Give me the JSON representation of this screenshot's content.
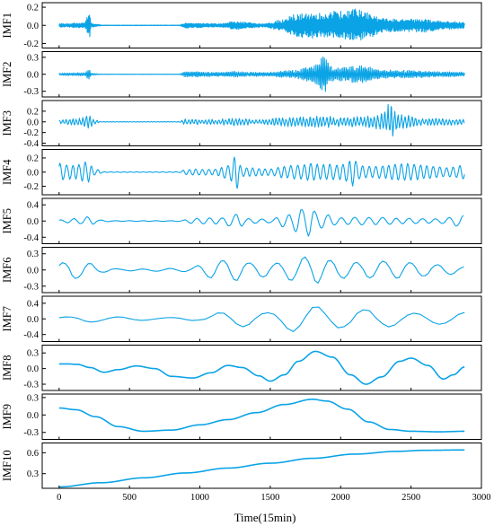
{
  "chart_data": {
    "type": "line",
    "xlabel": "Time(15min)",
    "xlim": [
      -120,
      3000
    ],
    "x_ticks": [
      "0",
      "500",
      "1000",
      "1500",
      "2000",
      "2500",
      "3000"
    ],
    "x_tick_values": [
      0,
      500,
      1000,
      1500,
      2000,
      2500,
      3000
    ],
    "n_points": 2880,
    "line_color": "#0aa3e6",
    "panels": [
      {
        "ylabel": "IMF1",
        "ylim": [
          -0.25,
          0.25
        ],
        "y_ticks": [
          "-0.2",
          "0.0",
          "0.2"
        ],
        "y_tick_values": [
          -0.2,
          0.0,
          0.2
        ],
        "description_points": [
          [
            0,
            0
          ],
          [
            200,
            0.02
          ],
          [
            220,
            0.15
          ],
          [
            225,
            -0.13
          ],
          [
            240,
            0.01
          ],
          [
            900,
            0.03
          ],
          [
            1600,
            0.12
          ],
          [
            1800,
            -0.15
          ],
          [
            2100,
            0.18
          ],
          [
            2200,
            0.12
          ],
          [
            2880,
            0.02
          ]
        ],
        "envelope": [
          [
            0,
            0.02
          ],
          [
            180,
            0.03
          ],
          [
            215,
            0.16
          ],
          [
            230,
            0.02
          ],
          [
            290,
            0.01
          ],
          [
            300,
            0.003
          ],
          [
            850,
            0.003
          ],
          [
            900,
            0.03
          ],
          [
            1150,
            0.02
          ],
          [
            1260,
            0.05
          ],
          [
            1350,
            0.03
          ],
          [
            1450,
            0.02
          ],
          [
            1580,
            0.06
          ],
          [
            1650,
            0.12
          ],
          [
            1750,
            0.14
          ],
          [
            1850,
            0.15
          ],
          [
            1950,
            0.16
          ],
          [
            2050,
            0.17
          ],
          [
            2100,
            0.19
          ],
          [
            2200,
            0.15
          ],
          [
            2300,
            0.08
          ],
          [
            2450,
            0.07
          ],
          [
            2600,
            0.08
          ],
          [
            2700,
            0.05
          ],
          [
            2880,
            0.04
          ]
        ],
        "oscillation_period": 6
      },
      {
        "ylabel": "IMF2",
        "ylim": [
          -0.4,
          0.4
        ],
        "y_ticks": [
          "0.3",
          "0.0",
          "-0.3"
        ],
        "y_tick_values": [
          0.3,
          0.0,
          -0.3
        ],
        "envelope": [
          [
            0,
            0.02
          ],
          [
            180,
            0.03
          ],
          [
            215,
            0.1
          ],
          [
            230,
            0.02
          ],
          [
            300,
            0.005
          ],
          [
            850,
            0.005
          ],
          [
            900,
            0.05
          ],
          [
            1150,
            0.04
          ],
          [
            1250,
            0.05
          ],
          [
            1350,
            0.04
          ],
          [
            1500,
            0.04
          ],
          [
            1650,
            0.07
          ],
          [
            1800,
            0.15
          ],
          [
            1880,
            0.32
          ],
          [
            1950,
            0.12
          ],
          [
            2150,
            0.16
          ],
          [
            2300,
            0.08
          ],
          [
            2500,
            0.07
          ],
          [
            2700,
            0.05
          ],
          [
            2880,
            0.04
          ]
        ],
        "oscillation_period": 12
      },
      {
        "ylabel": "IMF3",
        "ylim": [
          -0.45,
          0.4
        ],
        "y_ticks": [
          "0.2",
          "0.0",
          "-0.2",
          "-0.4"
        ],
        "y_tick_values": [
          0.2,
          0.0,
          -0.2,
          -0.4
        ],
        "envelope": [
          [
            0,
            0.05
          ],
          [
            150,
            0.08
          ],
          [
            200,
            0.16
          ],
          [
            260,
            0.04
          ],
          [
            300,
            0.005
          ],
          [
            850,
            0.005
          ],
          [
            900,
            0.06
          ],
          [
            1100,
            0.05
          ],
          [
            1250,
            0.08
          ],
          [
            1400,
            0.05
          ],
          [
            1600,
            0.09
          ],
          [
            1850,
            0.12
          ],
          [
            2000,
            0.1
          ],
          [
            2150,
            0.1
          ],
          [
            2280,
            0.16
          ],
          [
            2350,
            0.35
          ],
          [
            2420,
            0.14
          ],
          [
            2600,
            0.08
          ],
          [
            2880,
            0.06
          ]
        ],
        "oscillation_period": 24
      },
      {
        "ylabel": "IMF4",
        "ylim": [
          -0.32,
          0.32
        ],
        "y_ticks": [
          "0.2",
          "0.0",
          "-0.2"
        ],
        "y_tick_values": [
          0.2,
          0.0,
          -0.2
        ],
        "envelope": [
          [
            0,
            0.14
          ],
          [
            100,
            0.12
          ],
          [
            200,
            0.18
          ],
          [
            260,
            0.05
          ],
          [
            320,
            0.005
          ],
          [
            850,
            0.005
          ],
          [
            900,
            0.05
          ],
          [
            1100,
            0.05
          ],
          [
            1200,
            0.12
          ],
          [
            1260,
            0.26
          ],
          [
            1300,
            0.08
          ],
          [
            1500,
            0.06
          ],
          [
            1650,
            0.12
          ],
          [
            1800,
            0.15
          ],
          [
            2000,
            0.13
          ],
          [
            2080,
            0.24
          ],
          [
            2150,
            0.12
          ],
          [
            2300,
            0.1
          ],
          [
            2450,
            0.16
          ],
          [
            2600,
            0.12
          ],
          [
            2750,
            0.08
          ],
          [
            2880,
            0.12
          ]
        ],
        "oscillation_period": 46
      },
      {
        "ylabel": "IMF5",
        "ylim": [
          -0.56,
          0.56
        ],
        "y_ticks": [
          "0.4",
          "0.0",
          "-0.4"
        ],
        "y_tick_values": [
          0.4,
          0.0,
          -0.4
        ],
        "envelope": [
          [
            0,
            0.03
          ],
          [
            150,
            0.08
          ],
          [
            220,
            0.14
          ],
          [
            280,
            0.03
          ],
          [
            400,
            0.01
          ],
          [
            850,
            0.01
          ],
          [
            950,
            0.08
          ],
          [
            1150,
            0.1
          ],
          [
            1250,
            0.22
          ],
          [
            1350,
            0.08
          ],
          [
            1500,
            0.06
          ],
          [
            1600,
            0.2
          ],
          [
            1720,
            0.38
          ],
          [
            1770,
            0.45
          ],
          [
            1850,
            0.22
          ],
          [
            2000,
            0.1
          ],
          [
            2200,
            0.12
          ],
          [
            2500,
            0.08
          ],
          [
            2700,
            0.07
          ],
          [
            2880,
            0.18
          ]
        ],
        "oscillation_period": 95
      },
      {
        "ylabel": "IMF6",
        "ylim": [
          -0.42,
          0.42
        ],
        "y_ticks": [
          "0.3",
          "0.0",
          "-0.3"
        ],
        "y_tick_values": [
          0.3,
          0.0,
          -0.3
        ],
        "envelope": [
          [
            0,
            0.14
          ],
          [
            100,
            0.2
          ],
          [
            200,
            0.18
          ],
          [
            300,
            0.06
          ],
          [
            450,
            0.02
          ],
          [
            900,
            0.04
          ],
          [
            1100,
            0.18
          ],
          [
            1250,
            0.26
          ],
          [
            1400,
            0.16
          ],
          [
            1550,
            0.15
          ],
          [
            1700,
            0.3
          ],
          [
            1800,
            0.32
          ],
          [
            1950,
            0.2
          ],
          [
            2150,
            0.18
          ],
          [
            2350,
            0.2
          ],
          [
            2550,
            0.16
          ],
          [
            2750,
            0.12
          ],
          [
            2880,
            0.08
          ]
        ],
        "oscillation_period": 190
      },
      {
        "ylabel": "IMF7",
        "ylim": [
          -0.58,
          0.58
        ],
        "y_ticks": [
          "0.4",
          "0.0",
          "-0.4"
        ],
        "y_tick_values": [
          0.4,
          0.0,
          -0.4
        ],
        "envelope": [
          [
            0,
            0.05
          ],
          [
            200,
            0.1
          ],
          [
            400,
            0.07
          ],
          [
            700,
            0.04
          ],
          [
            1000,
            0.05
          ],
          [
            1150,
            0.2
          ],
          [
            1300,
            0.25
          ],
          [
            1500,
            0.18
          ],
          [
            1650,
            0.4
          ],
          [
            1800,
            0.45
          ],
          [
            1950,
            0.32
          ],
          [
            2050,
            0.3
          ],
          [
            2200,
            0.3
          ],
          [
            2400,
            0.22
          ],
          [
            2600,
            0.16
          ],
          [
            2880,
            0.2
          ]
        ],
        "oscillation_period": 360
      },
      {
        "ylabel": "IMF8",
        "ylim": [
          -0.42,
          0.45
        ],
        "y_ticks": [
          "0.3",
          "0.0",
          "-0.3"
        ],
        "y_tick_values": [
          0.3,
          0.0,
          -0.3
        ],
        "points": [
          [
            0,
            0.09
          ],
          [
            60,
            0.09
          ],
          [
            130,
            0.08
          ],
          [
            220,
            0.02
          ],
          [
            320,
            -0.07
          ],
          [
            420,
            -0.02
          ],
          [
            550,
            0.05
          ],
          [
            680,
            0.0
          ],
          [
            800,
            -0.15
          ],
          [
            950,
            -0.18
          ],
          [
            1080,
            -0.08
          ],
          [
            1200,
            0.06
          ],
          [
            1300,
            0.02
          ],
          [
            1420,
            -0.14
          ],
          [
            1500,
            -0.24
          ],
          [
            1600,
            -0.12
          ],
          [
            1700,
            0.14
          ],
          [
            1820,
            0.33
          ],
          [
            1940,
            0.22
          ],
          [
            2070,
            -0.12
          ],
          [
            2180,
            -0.3
          ],
          [
            2290,
            -0.16
          ],
          [
            2420,
            0.14
          ],
          [
            2500,
            0.2
          ],
          [
            2620,
            0.06
          ],
          [
            2730,
            -0.2
          ],
          [
            2800,
            -0.12
          ],
          [
            2880,
            0.03
          ]
        ]
      },
      {
        "ylabel": "IMF9",
        "ylim": [
          -0.42,
          0.36
        ],
        "y_ticks": [
          "0.3",
          "0.0",
          "-0.3"
        ],
        "y_tick_values": [
          0.3,
          0.0,
          -0.3
        ],
        "points": [
          [
            0,
            0.12
          ],
          [
            120,
            0.09
          ],
          [
            260,
            -0.03
          ],
          [
            420,
            -0.2
          ],
          [
            600,
            -0.28
          ],
          [
            800,
            -0.26
          ],
          [
            1000,
            -0.17
          ],
          [
            1200,
            -0.08
          ],
          [
            1400,
            0.04
          ],
          [
            1600,
            0.18
          ],
          [
            1800,
            0.27
          ],
          [
            1900,
            0.24
          ],
          [
            2050,
            0.1
          ],
          [
            2200,
            -0.12
          ],
          [
            2350,
            -0.25
          ],
          [
            2500,
            -0.28
          ],
          [
            2700,
            -0.29
          ],
          [
            2880,
            -0.28
          ]
        ]
      },
      {
        "ylabel": "IMF10",
        "ylim": [
          0.09,
          0.74
        ],
        "y_ticks": [
          "0.6",
          "0.3"
        ],
        "y_tick_values": [
          0.6,
          0.3
        ],
        "points": [
          [
            0,
            0.11
          ],
          [
            300,
            0.17
          ],
          [
            600,
            0.24
          ],
          [
            900,
            0.31
          ],
          [
            1200,
            0.38
          ],
          [
            1500,
            0.45
          ],
          [
            1800,
            0.52
          ],
          [
            2100,
            0.58
          ],
          [
            2400,
            0.62
          ],
          [
            2600,
            0.635
          ],
          [
            2880,
            0.64
          ]
        ]
      }
    ]
  }
}
